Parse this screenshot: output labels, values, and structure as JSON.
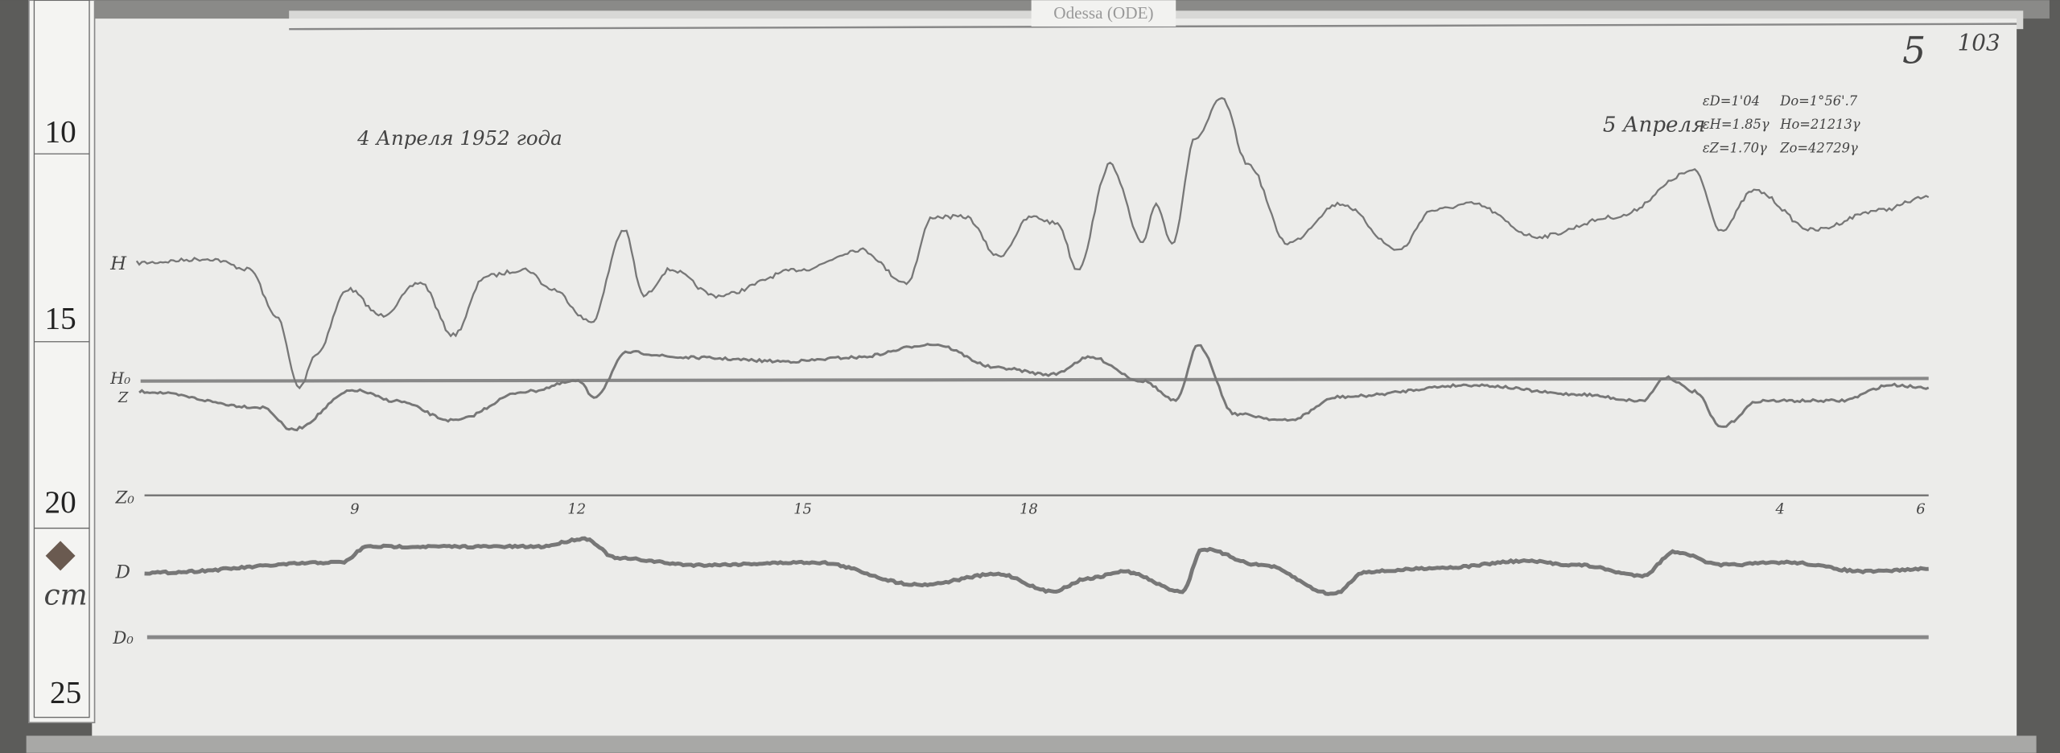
{
  "archive_label": "Odessa (ODE)",
  "corner_marks": {
    "sheet": "5",
    "number": "103"
  },
  "ruler": {
    "marks": [
      "10",
      "15",
      "20",
      "25"
    ],
    "unit": "cm"
  },
  "header": {
    "date_left": "4 Апреля 1952 года",
    "date_right": "5 Апреля",
    "constants": [
      "εD=1'04",
      "Do=1°56'.7",
      "εH=1.85γ",
      "Ho=21213γ",
      "εZ=1.70γ",
      "Zo=42729γ"
    ]
  },
  "traces": {
    "h_label": "H",
    "h0_label": "H₀",
    "z_label": "Z",
    "z0_label": "Z₀",
    "d_label": "D",
    "d0_label": "D₀"
  },
  "hour_ticks": [
    "9",
    "12",
    "15",
    "18",
    "4",
    "6"
  ],
  "colors": {
    "paper": "#ececea",
    "trace": "#777777",
    "background": "#5a5a58"
  }
}
